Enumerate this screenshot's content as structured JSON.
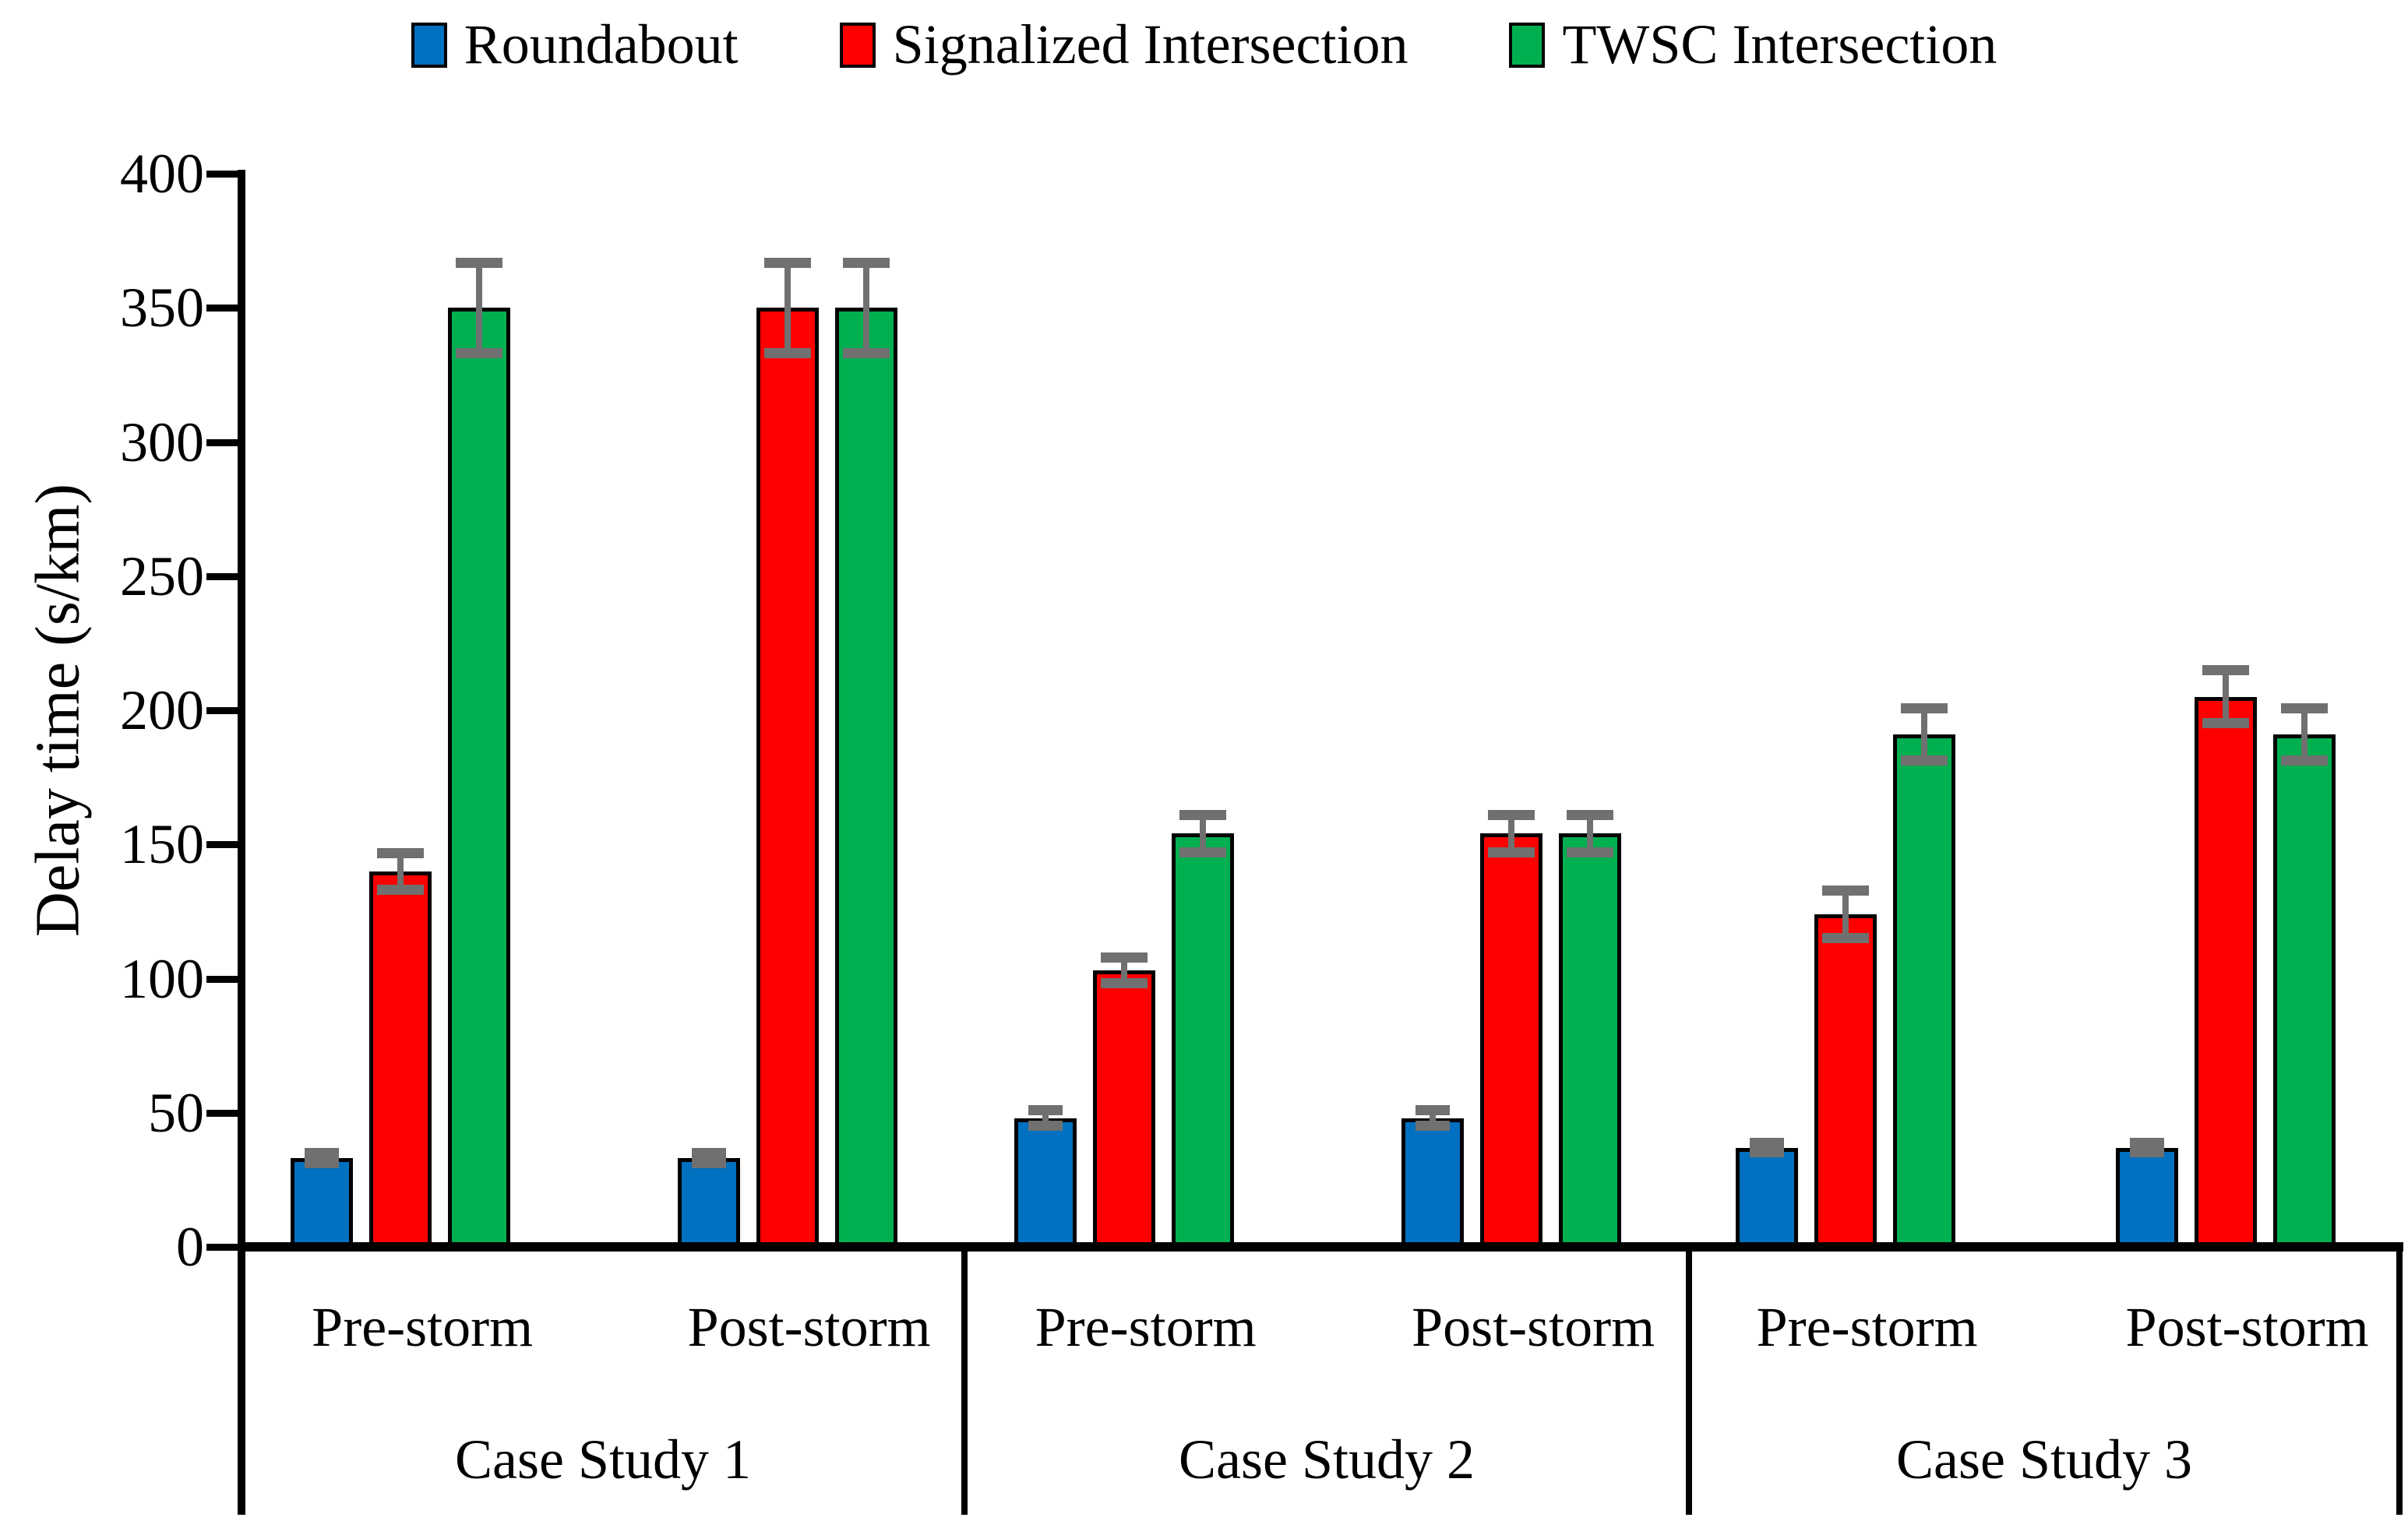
{
  "legend": {
    "items": [
      {
        "label": "Roundabout",
        "color": "#0070C0"
      },
      {
        "label": "Signalized Intersection",
        "color": "#FF0000"
      },
      {
        "label": "TWSC Intersection",
        "color": "#00B050"
      }
    ]
  },
  "y_axis": {
    "label": "Delay time (s/km)",
    "min": 0,
    "max": 400,
    "step": 50,
    "tick_labels": [
      "0",
      "50",
      "100",
      "150",
      "200",
      "250",
      "300",
      "350",
      "400"
    ]
  },
  "chart_data": {
    "type": "bar",
    "title": "",
    "xlabel": "",
    "ylabel": "Delay time (s/km)",
    "ylim": [
      0,
      400
    ],
    "ytick_step": 50,
    "grid": false,
    "legend_position": "top",
    "error_bars": true,
    "error_bar_color": "#707070",
    "bar_border_color": "#000000",
    "series_names": [
      "Roundabout",
      "Signalized Intersection",
      "TWSC Intersection"
    ],
    "series_colors": [
      "#0070C0",
      "#FF0000",
      "#00B050"
    ],
    "groups": [
      {
        "label": "Case Study 1",
        "conditions": [
          {
            "label": "Pre-storm",
            "values": [
              33,
              140,
              350
            ],
            "errors": [
              2,
              7,
              17
            ]
          },
          {
            "label": "Post-storm",
            "values": [
              33,
              350,
              350
            ],
            "errors": [
              2,
              17,
              17
            ]
          }
        ]
      },
      {
        "label": "Case Study 2",
        "conditions": [
          {
            "label": "Pre-storm",
            "values": [
              48,
              103,
              154
            ],
            "errors": [
              3,
              5,
              7
            ]
          },
          {
            "label": "Post-storm",
            "values": [
              48,
              154,
              154
            ],
            "errors": [
              3,
              7,
              7
            ]
          }
        ]
      },
      {
        "label": "Case Study 3",
        "conditions": [
          {
            "label": "Pre-storm",
            "values": [
              37,
              124,
              191
            ],
            "errors": [
              2,
              9,
              10
            ]
          },
          {
            "label": "Post-storm",
            "values": [
              37,
              205,
              191
            ],
            "errors": [
              2,
              10,
              10
            ]
          }
        ]
      }
    ]
  }
}
